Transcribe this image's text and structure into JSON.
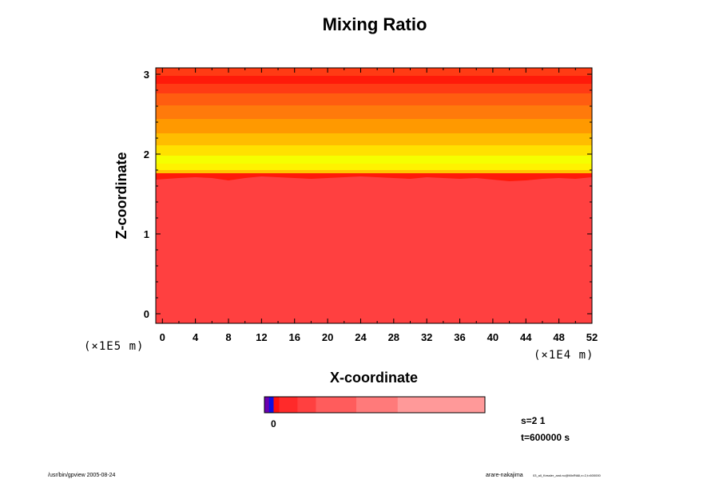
{
  "chart_data": {
    "type": "heatmap",
    "title": "Mixing Ratio",
    "xlabel": "X-coordinate",
    "ylabel": "Z-coordinate",
    "x_unit": "(×1E4 m)",
    "y_unit": "(×1E5 m)",
    "xlim": [
      -0.8,
      52
    ],
    "ylim": [
      -0.12,
      3.08
    ],
    "x_ticks": [
      0,
      4,
      8,
      12,
      16,
      20,
      24,
      28,
      32,
      36,
      40,
      44,
      48,
      52
    ],
    "y_ticks": [
      0,
      1,
      2,
      3
    ],
    "x_tick_labels": [
      "0",
      "4",
      "8",
      "12",
      "16",
      "20",
      "24",
      "28",
      "32",
      "36",
      "40",
      "44",
      "48",
      "52"
    ],
    "y_tick_labels": [
      "0",
      "1",
      "2",
      "3"
    ],
    "bands": [
      {
        "z0": 2.98,
        "z1": 3.08,
        "color": "#ff3b14"
      },
      {
        "z0": 2.88,
        "z1": 2.98,
        "color": "#ff1a0a"
      },
      {
        "z0": 2.76,
        "z1": 2.88,
        "color": "#ff3b14"
      },
      {
        "z0": 2.61,
        "z1": 2.76,
        "color": "#ff5d10"
      },
      {
        "z0": 2.44,
        "z1": 2.61,
        "color": "#ff7a0b"
      },
      {
        "z0": 2.26,
        "z1": 2.44,
        "color": "#ff9900"
      },
      {
        "z0": 2.11,
        "z1": 2.26,
        "color": "#ffbd00"
      },
      {
        "z0": 1.98,
        "z1": 2.11,
        "color": "#ffe100"
      },
      {
        "z0": 1.88,
        "z1": 1.98,
        "color": "#f5ff00"
      },
      {
        "z0": 1.8,
        "z1": 1.88,
        "color": "#fff200"
      },
      {
        "z0": 1.74,
        "z1": 1.8,
        "color": "#ffc400"
      }
    ],
    "base_color": "#ff4040",
    "interface_line_color": "#ff1a0a",
    "interface_x": [
      -0.8,
      2,
      4,
      6,
      8,
      10,
      12,
      14,
      16,
      18,
      20,
      22,
      24,
      26,
      28,
      30,
      32,
      34,
      36,
      38,
      40,
      42,
      44,
      46,
      48,
      50,
      52
    ],
    "interface_z": [
      1.68,
      1.7,
      1.71,
      1.7,
      1.67,
      1.7,
      1.72,
      1.71,
      1.7,
      1.69,
      1.7,
      1.71,
      1.72,
      1.71,
      1.7,
      1.69,
      1.71,
      1.7,
      1.69,
      1.7,
      1.68,
      1.66,
      1.67,
      1.69,
      1.7,
      1.69,
      1.71
    ],
    "colorbar": {
      "label": "0",
      "segments": [
        {
          "v0": 0,
          "v1": 0.05,
          "color": "#6a00b0"
        },
        {
          "v0": 0.05,
          "v1": 0.1,
          "color": "#1010e0"
        },
        {
          "v0": 0.1,
          "v1": 0.16,
          "color": "#ff1010"
        },
        {
          "v0": 0.16,
          "v1": 0.36,
          "color": "#ff2a2a"
        },
        {
          "v0": 0.36,
          "v1": 0.56,
          "color": "#ff4040"
        },
        {
          "v0": 0.56,
          "v1": 1.0,
          "color": "#ff5c5c"
        },
        {
          "v0": 1.0,
          "v1": 1.45,
          "color": "#ff7a7a"
        },
        {
          "v0": 1.45,
          "v1": 2.4,
          "color": "#ff9999"
        }
      ]
    }
  },
  "info": {
    "s_label": "s=2 1",
    "t_label": "t=600000 s"
  },
  "footer": {
    "left": "/usr/bin/gpview 2005-08-24",
    "right_main": "arare-nakajima",
    "right_sub": "03_all_Kessler_and.nc@MixRtAll,x=2,t=600000"
  }
}
